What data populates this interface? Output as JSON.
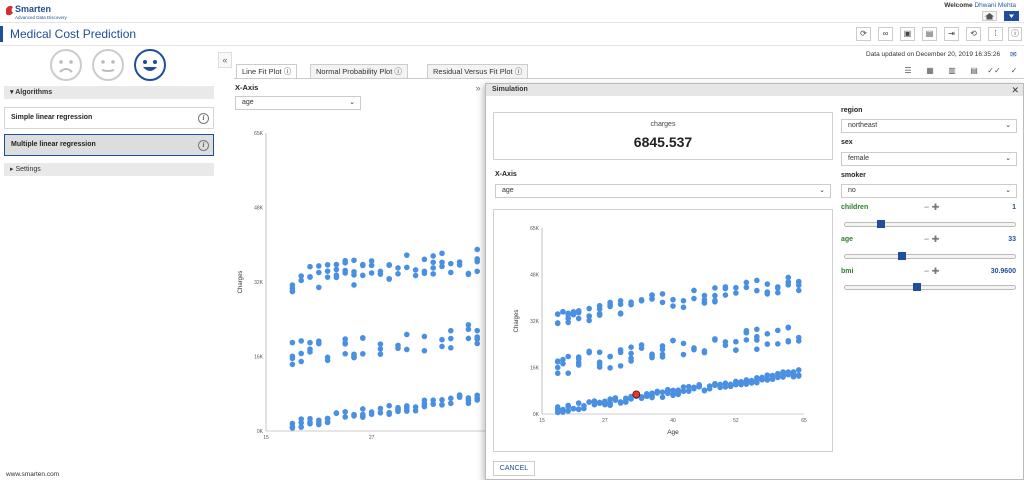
{
  "header": {
    "brand": "Smarten",
    "brand_sub": "Advanced Data Discovery",
    "welcome_prefix": "Welcome",
    "user": "Dhwani Mehta"
  },
  "title": "Medical Cost Prediction",
  "sidebar": {
    "algorithms_label": "Algorithms",
    "items": [
      {
        "label": "Simple linear regression",
        "selected": false
      },
      {
        "label": "Multiple linear regression",
        "selected": true
      }
    ],
    "settings_label": "Settings"
  },
  "status": {
    "updated": "Data updated on December 20, 2019 16:35:26"
  },
  "tabs": [
    {
      "label": "Line Fit Plot",
      "active": true
    },
    {
      "label": "Normal Probability Plot",
      "active": false
    },
    {
      "label": "Residual Versus Fit Plot",
      "active": false
    }
  ],
  "main": {
    "xaxis_label": "X-Axis",
    "xaxis_value": "age"
  },
  "footer": "www.smarten.com",
  "dialog": {
    "title": "Simulation",
    "result_label": "charges",
    "result_value": "6845.537",
    "xaxis_label": "X-Axis",
    "xaxis_value": "age",
    "cancel": "CANCEL",
    "fields": {
      "region": {
        "label": "region",
        "value": "northeast"
      },
      "sex": {
        "label": "sex",
        "value": "female"
      },
      "smoker": {
        "label": "smoker",
        "value": "no"
      },
      "children": {
        "label": "children",
        "value": "1",
        "level": 0.2
      },
      "age": {
        "label": "age",
        "value": "33",
        "level": 0.33
      },
      "bmi": {
        "label": "bmi",
        "value": "30.9600",
        "level": 0.42
      }
    }
  },
  "colors": {
    "accent": "#1f4e9a",
    "point": "#4a90e2",
    "highlight": "#e53935"
  },
  "chart_data": [
    {
      "type": "scatter",
      "xlabel": "",
      "ylabel": "Charges",
      "xlim": [
        15,
        40
      ],
      "ylim": [
        0,
        65000
      ],
      "yticks": [
        "0K",
        "16K",
        "32K",
        "48K",
        "65K"
      ],
      "xticks": [
        "15",
        "27"
      ],
      "series": [
        {
          "bands": [
            {
              "x": [
                18,
                19,
                20,
                21,
                22,
                23,
                24,
                25,
                26,
                27,
                28,
                29,
                30,
                31,
                32,
                33,
                34,
                35,
                36,
                37,
                38,
                39
              ],
              "base": 1500,
              "slope": 280,
              "jitter": 2200
            },
            {
              "x": [
                18,
                19,
                20,
                21,
                22,
                24,
                25,
                26,
                28,
                30,
                31,
                33,
                35,
                36,
                38,
                39
              ],
              "base": 17000,
              "slope": 200,
              "jitter": 5000
            },
            {
              "x": [
                18,
                19,
                20,
                21,
                22,
                23,
                24,
                25,
                26,
                27,
                28,
                29,
                30,
                31,
                32,
                33,
                34,
                35,
                36,
                37,
                38,
                39
              ],
              "base": 33000,
              "slope": 200,
              "jitter": 6000
            }
          ]
        }
      ]
    },
    {
      "type": "scatter",
      "xlabel": "Age",
      "ylabel": "Charges",
      "xlim": [
        15,
        65
      ],
      "ylim": [
        0,
        65000
      ],
      "yticks": [
        "0K",
        "16K",
        "32K",
        "48K",
        "65K"
      ],
      "xticks": [
        "15",
        "27",
        "40",
        "52",
        "65"
      ],
      "highlight": {
        "x": 33,
        "y": 6845.537
      },
      "series": [
        {
          "bands": [
            {
              "x": [
                18,
                19,
                20,
                21,
                22,
                23,
                24,
                25,
                26,
                27,
                28,
                29,
                30,
                31,
                32,
                33,
                34,
                35,
                36,
                37,
                38,
                39,
                40,
                41,
                42,
                43,
                44,
                45,
                46,
                47,
                48,
                49,
                50,
                51,
                52,
                53,
                54,
                55,
                56,
                57,
                58,
                59,
                60,
                61,
                62,
                63,
                64
              ],
              "base": 1500,
              "slope": 280,
              "jitter": 2500
            },
            {
              "x": [
                18,
                19,
                20,
                22,
                24,
                26,
                28,
                30,
                32,
                34,
                36,
                38,
                40,
                42,
                44,
                46,
                48,
                50,
                52,
                54,
                56,
                58,
                60,
                62,
                64
              ],
              "base": 17000,
              "slope": 240,
              "jitter": 7000
            },
            {
              "x": [
                18,
                19,
                20,
                21,
                22,
                24,
                26,
                28,
                30,
                32,
                34,
                36,
                38,
                40,
                42,
                44,
                46,
                48,
                50,
                52,
                54,
                56,
                58,
                60,
                62,
                64
              ],
              "base": 34000,
              "slope": 260,
              "jitter": 6000
            }
          ]
        }
      ]
    }
  ]
}
